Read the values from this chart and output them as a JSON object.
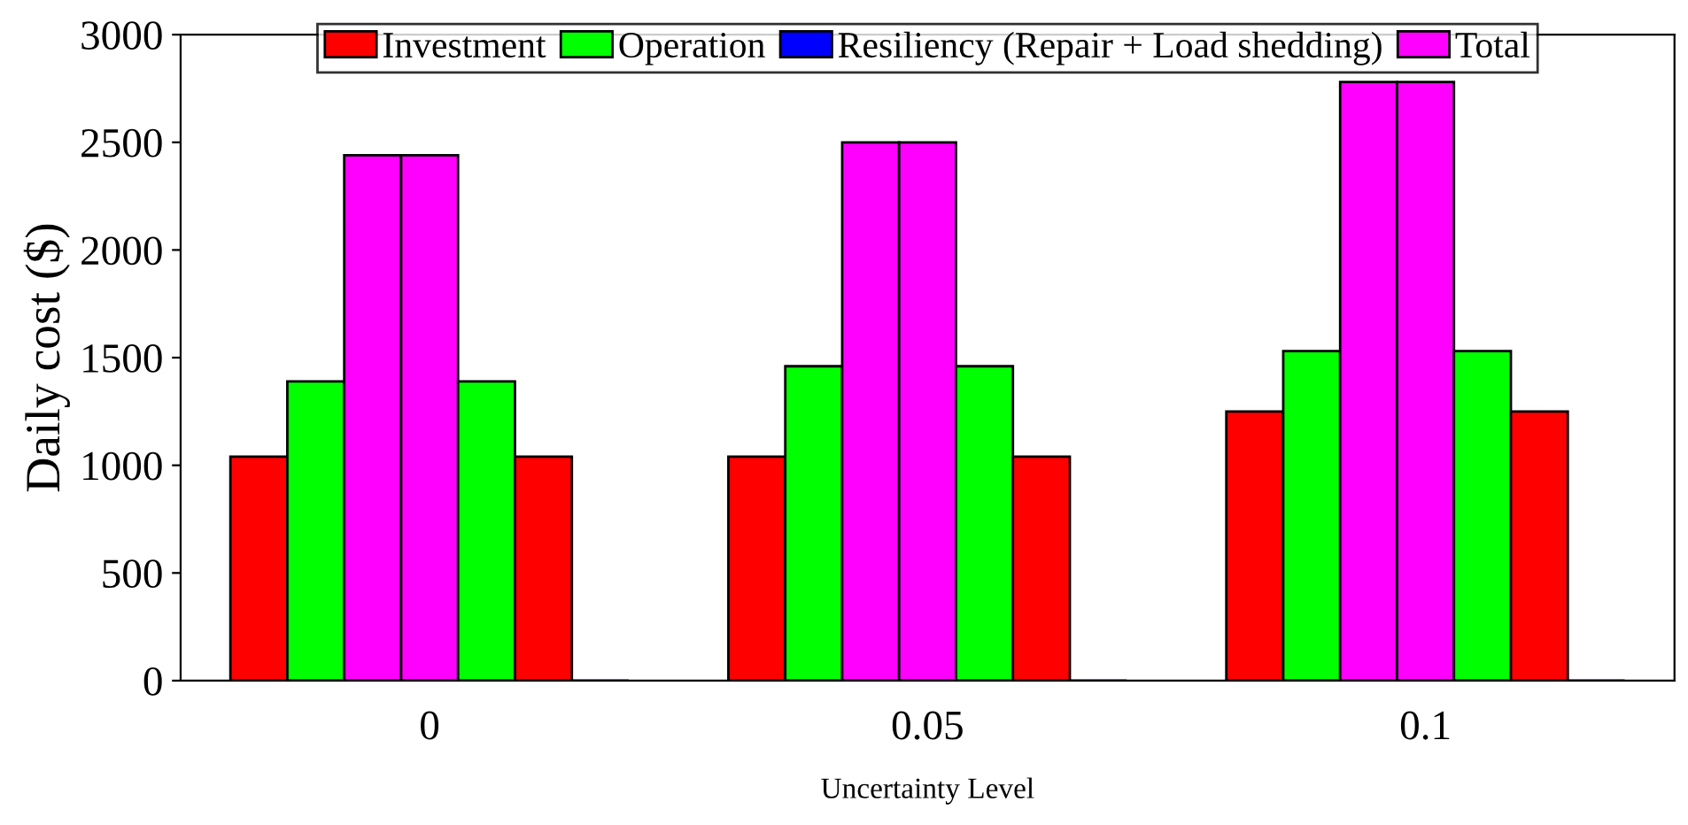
{
  "chart_data": {
    "type": "bar",
    "xlabel": "Uncertainty Level",
    "ylabel": "Daily cost ($)",
    "categories": [
      "0",
      "0.05",
      "0.1"
    ],
    "series": [
      {
        "name": "Investment",
        "color": "#ff0000",
        "values": [
          1040,
          1040,
          1250
        ]
      },
      {
        "name": "Operation",
        "color": "#00ff00",
        "values": [
          1390,
          1460,
          1530
        ]
      },
      {
        "name": "Resiliency (Repair + Load shedding)",
        "color": "#0000ff",
        "values": [
          0,
          0,
          0
        ]
      },
      {
        "name": "Total",
        "color": "#ff00ff",
        "values": [
          2440,
          2500,
          2780
        ]
      },
      {
        "color": "#ff00ff",
        "values": [
          2440,
          2500,
          2780
        ]
      },
      {
        "color": "#00ff00",
        "values": [
          1390,
          1460,
          1530
        ]
      },
      {
        "color": "#ff0000",
        "values": [
          1040,
          1040,
          1250
        ]
      }
    ],
    "ylim": [
      0,
      3000
    ],
    "yticks": [
      0,
      500,
      1000,
      1500,
      2000,
      2500,
      3000
    ],
    "grid": false,
    "legend": "top"
  }
}
